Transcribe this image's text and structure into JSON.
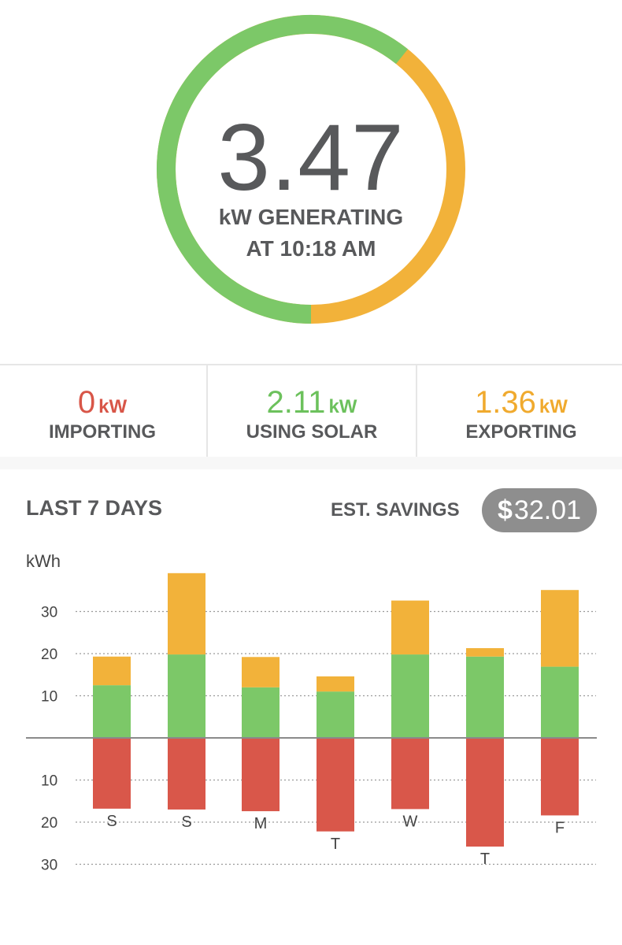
{
  "gauge": {
    "value": "3.47",
    "label_line1": "kW GENERATING",
    "label_line2": "AT 10:18 AM",
    "using_fraction": 0.608,
    "colors": {
      "using": "#7cc868",
      "exporting": "#f2b23a"
    }
  },
  "stats": [
    {
      "value": "0",
      "unit": "kW",
      "label": "IMPORTING",
      "color": "#d85648"
    },
    {
      "value": "2.11",
      "unit": "kW",
      "label": "USING SOLAR",
      "color": "#6cc15c"
    },
    {
      "value": "1.36",
      "unit": "kW",
      "label": "EXPORTING",
      "color": "#f0aa2e"
    }
  ],
  "summary": {
    "title": "LAST 7 DAYS",
    "savings_label": "EST. SAVINGS",
    "savings_symbol": "$",
    "savings_amount": "32.01"
  },
  "chart_data": {
    "type": "bar",
    "ylabel": "kWh",
    "categories": [
      "S",
      "S",
      "M",
      "T",
      "W",
      "T",
      "F"
    ],
    "y_ticks_positive": [
      10,
      20,
      30
    ],
    "y_ticks_negative": [
      10,
      20,
      30
    ],
    "ylim_positive": [
      0,
      40
    ],
    "ylim_negative": [
      0,
      30
    ],
    "series": [
      {
        "values": [
          12.5,
          19.8,
          12,
          11,
          19.8,
          19.3,
          16.9
        ],
        "color": "#7cc868",
        "direction": "up"
      },
      {
        "values": [
          6.8,
          19.3,
          7.2,
          3.6,
          12.8,
          2,
          18.2
        ],
        "color": "#f2b23a",
        "direction": "up"
      },
      {
        "values": [
          16.8,
          17,
          17.4,
          22.2,
          16.9,
          25.8,
          18.4
        ],
        "color": "#d9574a",
        "direction": "down"
      }
    ]
  }
}
